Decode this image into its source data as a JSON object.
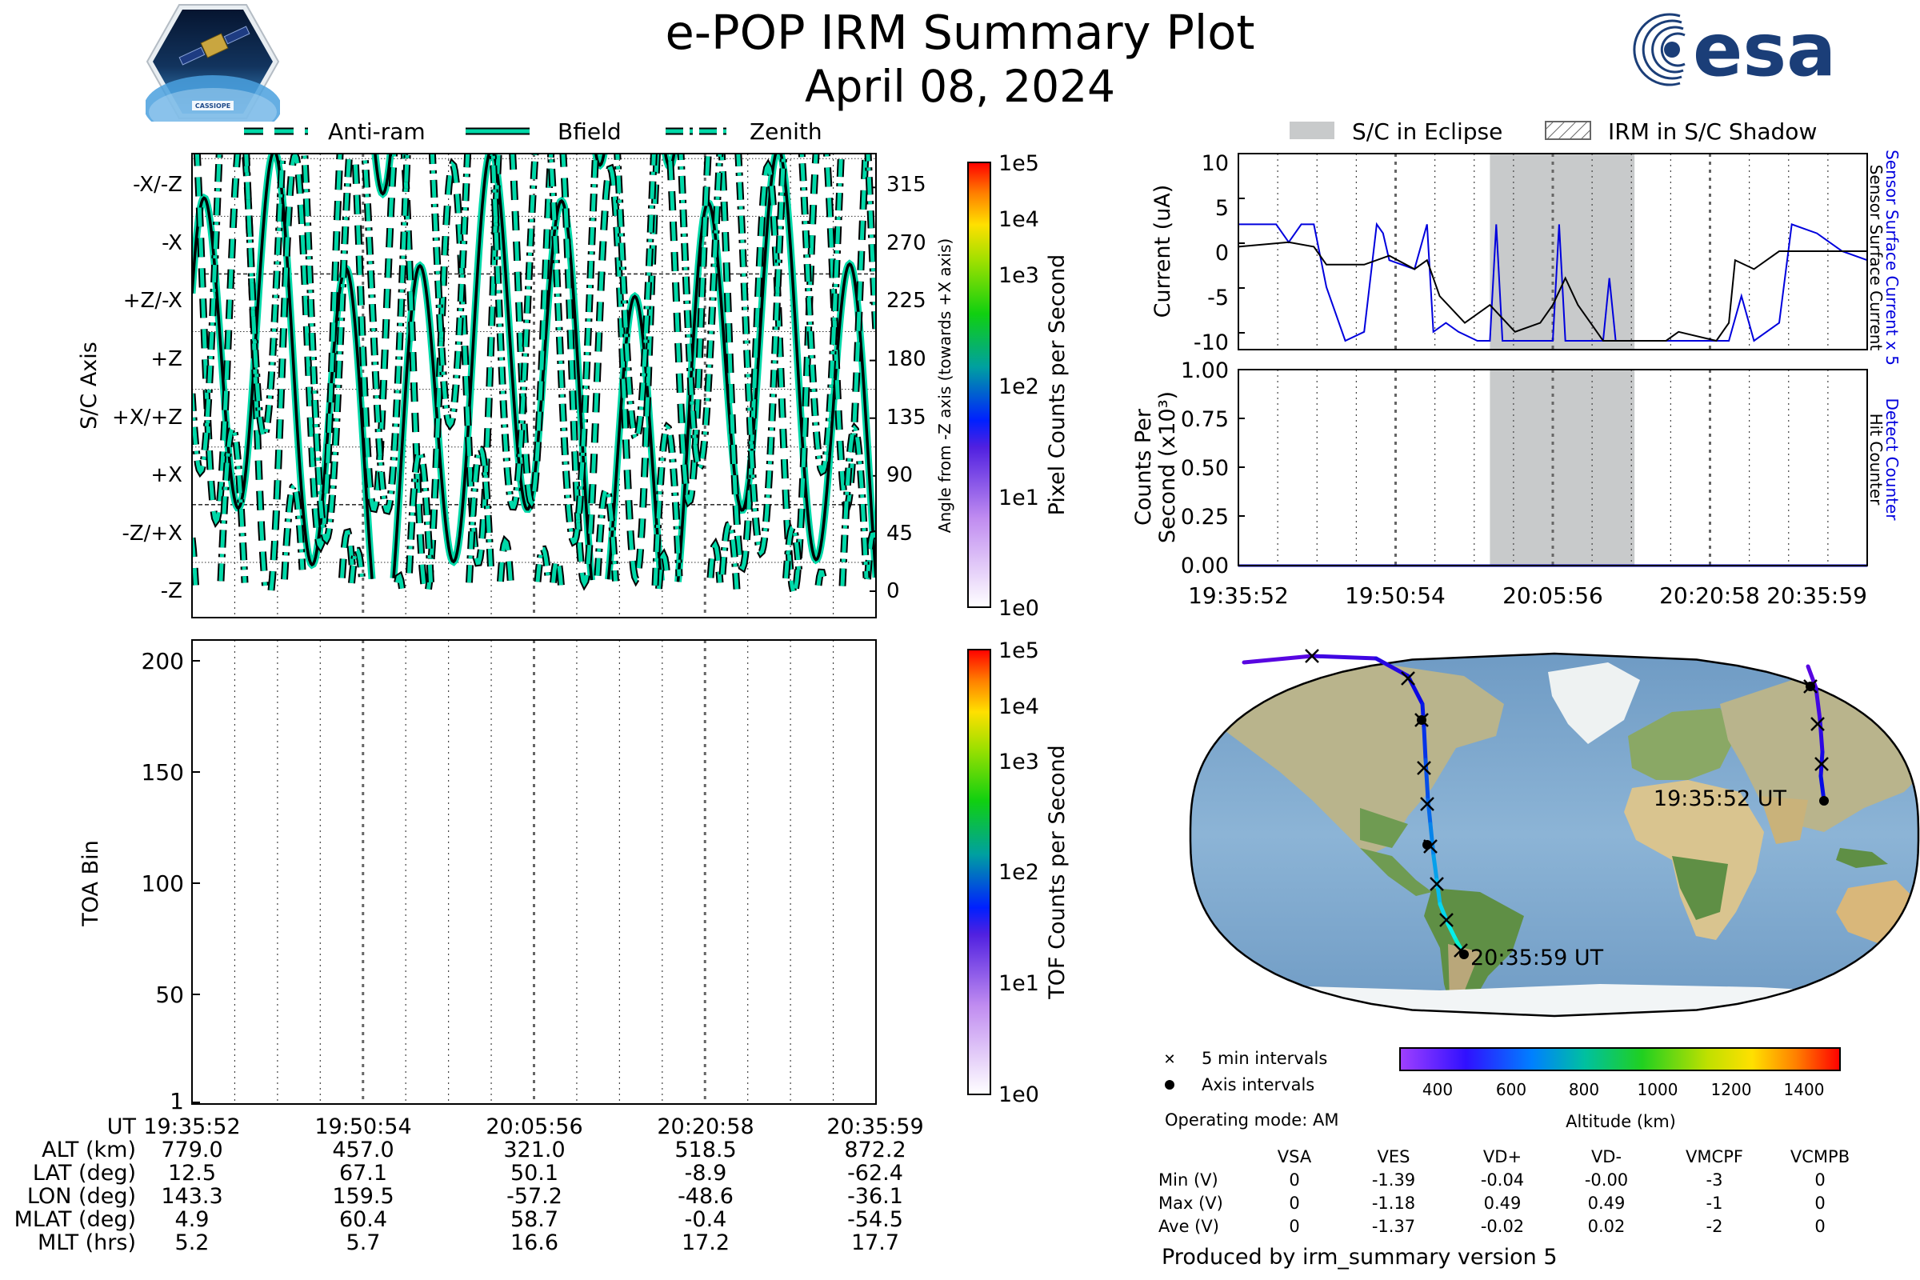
{
  "header": {
    "title": "e-POP IRM Summary Plot",
    "date": "April 08, 2024",
    "cassiope_label": "CASSIOPE",
    "esa_label": "esa"
  },
  "colors": {
    "trace": "#00d8a8",
    "blue": "#0000dd",
    "eclipse": "#c8cacb",
    "grid": "#777777"
  },
  "angle_panel": {
    "legend": [
      "Anti-ram",
      "Bfield",
      "Zenith"
    ],
    "ylabel_left": "S/C Axis",
    "ylabel_right": "Angle from -Z axis (towards +X axis)",
    "axis_labels": [
      "-Z",
      "-Z/+X",
      "+X",
      "+X/+Z",
      "+Z",
      "+Z/-X",
      "-X",
      "-X/-Z"
    ],
    "angle_ticks": [
      "0",
      "45",
      "90",
      "135",
      "180",
      "225",
      "270",
      "315"
    ],
    "colorbar_label": "Pixel Counts per Second",
    "colorbar_ticks": [
      "1e0",
      "1e1",
      "1e2",
      "1e3",
      "1e4",
      "1e5"
    ]
  },
  "toa_panel": {
    "ylabel": "TOA Bin",
    "ticks": [
      "1",
      "50",
      "100",
      "150",
      "200"
    ],
    "colorbar_label": "TOF Counts per Second",
    "colorbar_ticks": [
      "1e0",
      "1e1",
      "1e2",
      "1e3",
      "1e4",
      "1e5"
    ]
  },
  "ephemeris": {
    "row_labels": [
      "UT",
      "ALT (km)",
      "LAT (deg)",
      "LON (deg)",
      "MLAT (deg)",
      "MLT (hrs)"
    ],
    "columns": [
      [
        "19:35:52",
        "779.0",
        "12.5",
        "143.3",
        "4.9",
        "5.2"
      ],
      [
        "19:50:54",
        "457.0",
        "67.1",
        "159.5",
        "60.4",
        "5.7"
      ],
      [
        "20:05:56",
        "321.0",
        "50.1",
        "-57.2",
        "58.7",
        "16.6"
      ],
      [
        "20:20:58",
        "518.5",
        "-8.9",
        "-48.6",
        "-0.4",
        "17.2"
      ],
      [
        "20:35:59",
        "872.2",
        "-62.4",
        "-36.1",
        "-54.5",
        "17.7"
      ]
    ]
  },
  "current_panel": {
    "legend": [
      "S/C in Eclipse",
      "IRM in S/C Shadow"
    ],
    "ylabel": "Current (uA)",
    "yticks": [
      "10",
      "5",
      "0",
      "-5",
      "-10"
    ],
    "right_label_blue": "Sensor Surface Current x 5",
    "right_label_black": "Sensor Surface Current"
  },
  "counts_panel": {
    "ylabel_line1": "Counts Per",
    "ylabel_line2": "Second (x10³)",
    "yticks": [
      "1.00",
      "0.75",
      "0.50",
      "0.25",
      "0.00"
    ],
    "right_label_blue": "Detect Counter",
    "right_label_black": "Hit Counter",
    "xticks": [
      "19:35:52",
      "19:50:54",
      "20:05:56",
      "20:20:58",
      "20:35:59"
    ]
  },
  "map": {
    "start_label": "19:35:52 UT",
    "end_label": "20:35:59 UT",
    "legend_5min": "5 min intervals",
    "legend_axis": "Axis intervals",
    "colorbar_label": "Altitude (km)",
    "colorbar_ticks": [
      "400",
      "600",
      "800",
      "1000",
      "1200",
      "1400"
    ]
  },
  "voltages": {
    "operating_mode": "Operating mode: AM",
    "headers": [
      "VSA",
      "VES",
      "VD+",
      "VD-",
      "VMCPF",
      "VCMPB"
    ],
    "rows": [
      {
        "label": "Min (V)",
        "values": [
          "0",
          "-1.39",
          "-0.04",
          "-0.00",
          "-3",
          "0"
        ]
      },
      {
        "label": "Max (V)",
        "values": [
          "0",
          "-1.18",
          "0.49",
          "0.49",
          "-1",
          "0"
        ]
      },
      {
        "label": "Ave (V)",
        "values": [
          "0",
          "-1.37",
          "-0.02",
          "0.02",
          "-2",
          "0"
        ]
      }
    ]
  },
  "footer": "Produced by irm_summary version 5",
  "chart_data": [
    {
      "type": "line",
      "title": "e-POP IRM Summary Plot",
      "xlabel": "",
      "ylabel": "S/C Axis",
      "x": [
        "19:35:52",
        "19:50:54",
        "20:05:56",
        "20:20:58",
        "20:35:59"
      ],
      "ylim": [
        -15,
        345
      ],
      "series": [
        {
          "name": "Anti-ram"
        },
        {
          "name": "Bfield"
        },
        {
          "name": "Zenith"
        }
      ]
    },
    {
      "type": "heatmap",
      "ylabel": "TOA Bin",
      "ylim": [
        1,
        210
      ],
      "values": []
    },
    {
      "type": "line",
      "ylabel": "Current (uA)",
      "ylim": [
        -11,
        11
      ],
      "series": [
        {
          "name": "Sensor Surface Current x 5"
        },
        {
          "name": "Sensor Surface Current"
        }
      ],
      "eclipse_range": [
        "20:01:50",
        "20:15:40"
      ]
    },
    {
      "type": "line",
      "ylabel": "Counts Per Second (x10³)",
      "ylim": [
        0,
        1
      ],
      "series": [
        {
          "name": "Detect Counter",
          "values": [
            0,
            0,
            0,
            0,
            0
          ]
        },
        {
          "name": "Hit Counter",
          "values": [
            0,
            0,
            0,
            0,
            0
          ]
        }
      ]
    },
    {
      "type": "scatter",
      "xlabel": "Altitude (km)",
      "points": [
        {
          "ut": "19:35:52",
          "lat": 12.5,
          "lon": 143.3,
          "alt": 779.0
        },
        {
          "ut": "19:50:54",
          "lat": 67.1,
          "lon": 159.5,
          "alt": 457.0
        },
        {
          "ut": "20:05:56",
          "lat": 50.1,
          "lon": -57.2,
          "alt": 321.0
        },
        {
          "ut": "20:20:58",
          "lat": -8.9,
          "lon": -48.6,
          "alt": 518.5
        },
        {
          "ut": "20:35:59",
          "lat": -62.4,
          "lon": -36.1,
          "alt": 872.2
        }
      ]
    }
  ]
}
